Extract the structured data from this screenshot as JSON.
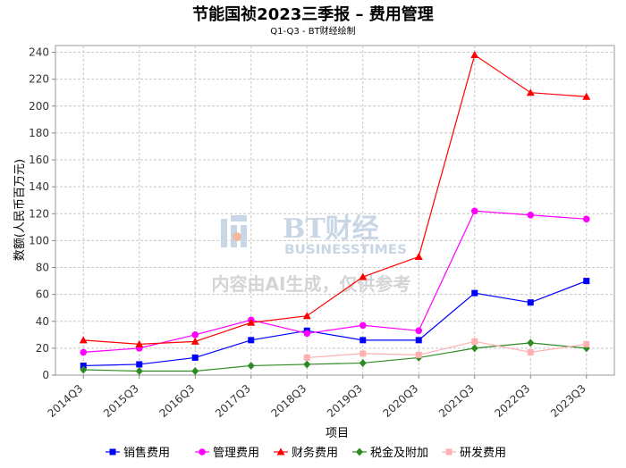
{
  "watermark": {
    "brand": "BT财经",
    "brand_sub": "BUSINESSTIMES",
    "notice": "内容由AI生成，仅供参考"
  },
  "chart_data": {
    "type": "line",
    "title": "节能国祯2023三季报 – 费用管理",
    "subtitle": "Q1-Q3 - BT财经绘制",
    "xlabel": "项目",
    "ylabel": "数额(人民币百万元)",
    "ylim": [
      0,
      245
    ],
    "yticks": [
      0,
      20,
      40,
      60,
      80,
      100,
      120,
      140,
      160,
      180,
      200,
      220,
      240
    ],
    "grid": true,
    "legend_position": "bottom",
    "categories": [
      "2014Q3",
      "2015Q3",
      "2016Q3",
      "2017Q3",
      "2018Q3",
      "2019Q3",
      "2020Q3",
      "2021Q3",
      "2022Q3",
      "2023Q3"
    ],
    "series": [
      {
        "name": "销售费用",
        "color": "#0000ff",
        "marker": "square",
        "values": [
          7,
          8,
          13,
          26,
          33,
          26,
          26,
          61,
          54,
          70
        ]
      },
      {
        "name": "管理费用",
        "color": "#ff00ff",
        "marker": "circle",
        "values": [
          17,
          20,
          30,
          41,
          31,
          37,
          33,
          122,
          119,
          116
        ]
      },
      {
        "name": "财务费用",
        "color": "#ff0000",
        "marker": "triangle",
        "values": [
          26,
          23,
          25,
          39,
          44,
          73,
          88,
          238,
          210,
          207
        ]
      },
      {
        "name": "税金及附加",
        "color": "#2e8b22",
        "marker": "diamond",
        "values": [
          4,
          3,
          3,
          7,
          8,
          9,
          13,
          20,
          24,
          20
        ]
      },
      {
        "name": "研发费用",
        "color": "#ffb0b0",
        "marker": "square",
        "values": [
          null,
          null,
          null,
          null,
          13,
          16,
          15,
          25,
          17,
          23
        ]
      }
    ]
  }
}
